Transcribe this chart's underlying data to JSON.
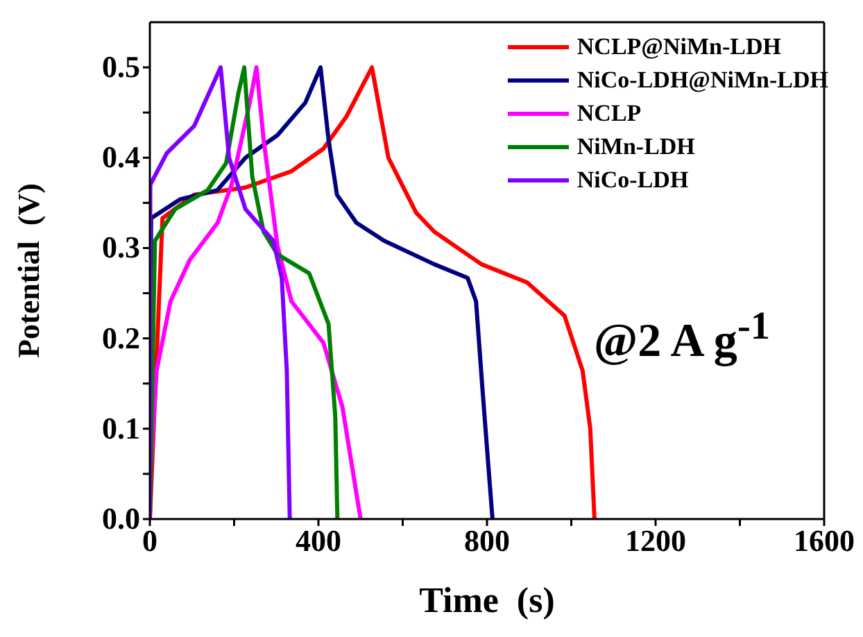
{
  "chart_data": {
    "type": "line",
    "xlabel": "Time  (s)",
    "ylabel": "Potential  (V)",
    "xlim": [
      0,
      1600
    ],
    "ylim": [
      0,
      0.55
    ],
    "xticks": [
      0,
      {
        "value": 200,
        "label": null
      },
      400,
      {
        "value": 600,
        "label": null
      },
      800,
      {
        "value": 1000,
        "label": null
      },
      1200,
      {
        "value": 1400,
        "label": null
      },
      1600
    ],
    "yticks": [
      {
        "value": 0,
        "label": "0.0"
      },
      {
        "value": 0.05,
        "label": null
      },
      0.1,
      {
        "value": 0.15,
        "label": null
      },
      0.2,
      {
        "value": 0.25,
        "label": null
      },
      0.3,
      {
        "value": 0.35,
        "label": null
      },
      0.4,
      {
        "value": 0.45,
        "label": null
      },
      0.5
    ],
    "legend": "top right",
    "grid": false,
    "marker": "none",
    "line_style": "solid",
    "annotations": [
      "@2 A g$^{-1}$"
    ],
    "series": [
      {
        "name": "NCLP@NiMn-LDH",
        "color": "#ff0000",
        "x": [
          0,
          30,
          105,
          227,
          336,
          412,
          467,
          527,
          566,
          632,
          675,
          787,
          895,
          984,
          1027,
          1045,
          1055
        ],
        "values": [
          0,
          0.333,
          0.359,
          0.367,
          0.385,
          0.41,
          0.446,
          0.5,
          0.4,
          0.339,
          0.318,
          0.282,
          0.262,
          0.225,
          0.164,
          0.1,
          0
        ]
      },
      {
        "name": "NiCo-LDH@NiMn-LDH",
        "color": "#000080",
        "x": [
          0,
          3,
          72,
          160,
          227,
          303,
          369,
          405,
          424,
          444,
          490,
          556,
          675,
          754,
          774,
          790,
          813
        ],
        "values": [
          0,
          0.333,
          0.354,
          0.364,
          0.4,
          0.425,
          0.461,
          0.5,
          0.42,
          0.359,
          0.328,
          0.308,
          0.282,
          0.267,
          0.241,
          0.139,
          0
        ]
      },
      {
        "name": "NCLP",
        "color": "#ff00ff",
        "x": [
          0,
          16,
          49,
          95,
          161,
          194,
          237,
          253,
          270,
          303,
          336,
          412,
          457,
          500
        ],
        "values": [
          0.04,
          0.164,
          0.241,
          0.287,
          0.328,
          0.37,
          0.461,
          0.5,
          0.42,
          0.302,
          0.241,
          0.195,
          0.124,
          0
        ]
      },
      {
        "name": "NiMn-LDH",
        "color": "#008000",
        "x": [
          0,
          12,
          60,
          137,
          181,
          210,
          224,
          243,
          270,
          303,
          378,
          424,
          440,
          445
        ],
        "values": [
          0,
          0.308,
          0.343,
          0.364,
          0.394,
          0.471,
          0.5,
          0.379,
          0.318,
          0.293,
          0.272,
          0.216,
          0.113,
          0
        ]
      },
      {
        "name": "NiCo-LDH",
        "color": "#8000ff",
        "x": [
          0,
          1,
          40,
          105,
          168,
          188,
          227,
          293,
          313,
          325,
          332
        ],
        "values": [
          0,
          0.37,
          0.405,
          0.435,
          0.5,
          0.4,
          0.343,
          0.308,
          0.267,
          0.164,
          0
        ]
      }
    ]
  }
}
